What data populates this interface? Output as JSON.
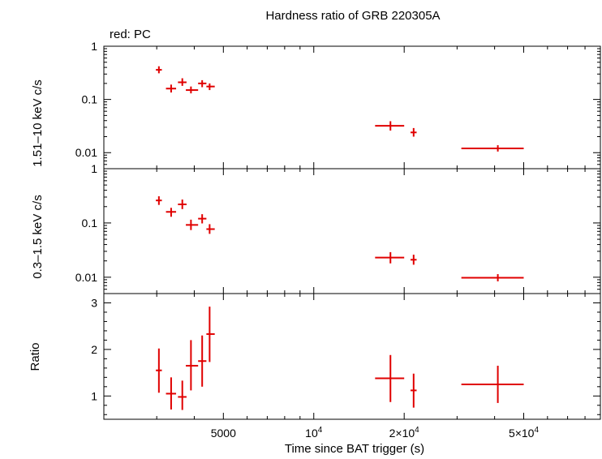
{
  "chart_data": {
    "type": "scatter",
    "title": "Hardness ratio of GRB 220305A",
    "subtitle": "red: PC",
    "xlabel": "Time since BAT trigger (s)",
    "xscale": "log",
    "xlim": [
      2000,
      90000
    ],
    "xticks": [
      {
        "value": 5000,
        "label": "5000"
      },
      {
        "value": 10000,
        "label": "10",
        "exp": "4"
      },
      {
        "value": 20000,
        "label": "2×10",
        "exp": "4"
      },
      {
        "value": 50000,
        "label": "5×10",
        "exp": "4"
      }
    ],
    "color": "#e00000",
    "grid": false,
    "panels": [
      {
        "name": "hard",
        "ylabel": "1.51–10 keV c/s",
        "yscale": "log",
        "ylim": [
          0.005,
          1
        ],
        "yticks": [
          {
            "value": 1,
            "label": "1"
          },
          {
            "value": 0.1,
            "label": "0.1"
          },
          {
            "value": 0.01,
            "label": "0.01"
          }
        ],
        "points": [
          {
            "x": 3050,
            "xlo": 2980,
            "xhi": 3120,
            "y": 0.36,
            "ylo": 0.31,
            "yhi": 0.42
          },
          {
            "x": 3350,
            "xlo": 3220,
            "xhi": 3480,
            "y": 0.16,
            "ylo": 0.135,
            "yhi": 0.19
          },
          {
            "x": 3650,
            "xlo": 3530,
            "xhi": 3770,
            "y": 0.21,
            "ylo": 0.18,
            "yhi": 0.25
          },
          {
            "x": 3900,
            "xlo": 3750,
            "xhi": 4120,
            "y": 0.15,
            "ylo": 0.13,
            "yhi": 0.175
          },
          {
            "x": 4250,
            "xlo": 4120,
            "xhi": 4390,
            "y": 0.2,
            "ylo": 0.17,
            "yhi": 0.23
          },
          {
            "x": 4500,
            "xlo": 4390,
            "xhi": 4680,
            "y": 0.175,
            "ylo": 0.15,
            "yhi": 0.2
          },
          {
            "x": 18000,
            "xlo": 16000,
            "xhi": 20000,
            "y": 0.032,
            "ylo": 0.026,
            "yhi": 0.039
          },
          {
            "x": 21500,
            "xlo": 21000,
            "xhi": 22000,
            "y": 0.024,
            "ylo": 0.02,
            "yhi": 0.029
          },
          {
            "x": 41000,
            "xlo": 31000,
            "xhi": 50000,
            "y": 0.012,
            "ylo": 0.0105,
            "yhi": 0.0138
          }
        ]
      },
      {
        "name": "soft",
        "ylabel": "0.3–1.5 keV c/s",
        "yscale": "log",
        "ylim": [
          0.005,
          1
        ],
        "yticks": [
          {
            "value": 1,
            "label": "1"
          },
          {
            "value": 0.1,
            "label": "0.1"
          },
          {
            "value": 0.01,
            "label": "0.01"
          }
        ],
        "points": [
          {
            "x": 3050,
            "xlo": 2980,
            "xhi": 3120,
            "y": 0.26,
            "ylo": 0.215,
            "yhi": 0.31
          },
          {
            "x": 3350,
            "xlo": 3220,
            "xhi": 3480,
            "y": 0.16,
            "ylo": 0.13,
            "yhi": 0.19
          },
          {
            "x": 3650,
            "xlo": 3530,
            "xhi": 3770,
            "y": 0.22,
            "ylo": 0.18,
            "yhi": 0.27
          },
          {
            "x": 3900,
            "xlo": 3750,
            "xhi": 4120,
            "y": 0.092,
            "ylo": 0.074,
            "yhi": 0.115
          },
          {
            "x": 4250,
            "xlo": 4120,
            "xhi": 4390,
            "y": 0.12,
            "ylo": 0.098,
            "yhi": 0.145
          },
          {
            "x": 4500,
            "xlo": 4390,
            "xhi": 4680,
            "y": 0.077,
            "ylo": 0.063,
            "yhi": 0.095
          },
          {
            "x": 18000,
            "xlo": 16000,
            "xhi": 20000,
            "y": 0.023,
            "ylo": 0.018,
            "yhi": 0.029
          },
          {
            "x": 21500,
            "xlo": 21000,
            "xhi": 22000,
            "y": 0.021,
            "ylo": 0.017,
            "yhi": 0.026
          },
          {
            "x": 41000,
            "xlo": 31000,
            "xhi": 50000,
            "y": 0.0098,
            "ylo": 0.0084,
            "yhi": 0.0114
          }
        ]
      },
      {
        "name": "ratio",
        "ylabel": "Ratio",
        "yscale": "linear",
        "ylim": [
          0.5,
          3.2
        ],
        "yticks": [
          {
            "value": 1,
            "label": "1"
          },
          {
            "value": 2,
            "label": "2"
          },
          {
            "value": 3,
            "label": "3"
          }
        ],
        "points": [
          {
            "x": 3050,
            "xlo": 2980,
            "xhi": 3120,
            "y": 1.55,
            "ylo": 1.07,
            "yhi": 2.02
          },
          {
            "x": 3350,
            "xlo": 3220,
            "xhi": 3480,
            "y": 1.05,
            "ylo": 0.71,
            "yhi": 1.4
          },
          {
            "x": 3650,
            "xlo": 3530,
            "xhi": 3770,
            "y": 0.98,
            "ylo": 0.7,
            "yhi": 1.33
          },
          {
            "x": 3900,
            "xlo": 3750,
            "xhi": 4120,
            "y": 1.65,
            "ylo": 1.12,
            "yhi": 2.2
          },
          {
            "x": 4250,
            "xlo": 4120,
            "xhi": 4390,
            "y": 1.75,
            "ylo": 1.2,
            "yhi": 2.3
          },
          {
            "x": 4500,
            "xlo": 4390,
            "xhi": 4680,
            "y": 2.33,
            "ylo": 1.73,
            "yhi": 2.92
          },
          {
            "x": 18000,
            "xlo": 16000,
            "xhi": 20000,
            "y": 1.38,
            "ylo": 0.87,
            "yhi": 1.88
          },
          {
            "x": 21500,
            "xlo": 21000,
            "xhi": 22000,
            "y": 1.12,
            "ylo": 0.75,
            "yhi": 1.48
          },
          {
            "x": 41000,
            "xlo": 31000,
            "xhi": 50000,
            "y": 1.25,
            "ylo": 0.85,
            "yhi": 1.65
          }
        ]
      }
    ]
  }
}
